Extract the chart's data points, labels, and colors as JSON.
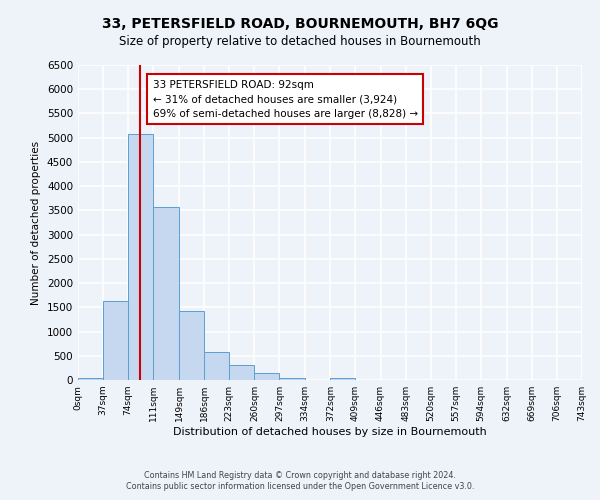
{
  "title": "33, PETERSFIELD ROAD, BOURNEMOUTH, BH7 6QG",
  "subtitle": "Size of property relative to detached houses in Bournemouth",
  "xlabel": "Distribution of detached houses by size in Bournemouth",
  "ylabel": "Number of detached properties",
  "bin_edges": [
    0,
    37,
    74,
    111,
    149,
    186,
    223,
    260,
    297,
    334,
    372,
    409,
    446,
    483,
    520,
    557,
    594,
    632,
    669,
    706,
    743
  ],
  "bar_heights": [
    50,
    1620,
    5080,
    3580,
    1420,
    580,
    300,
    140,
    50,
    0,
    50,
    0,
    0,
    0,
    0,
    0,
    0,
    0,
    0,
    0
  ],
  "bar_color": "#c5d8f0",
  "bar_edge_color": "#5a9fd4",
  "vline_x": 92,
  "vline_color": "#cc0000",
  "ylim": [
    0,
    6500
  ],
  "yticks": [
    0,
    500,
    1000,
    1500,
    2000,
    2500,
    3000,
    3500,
    4000,
    4500,
    5000,
    5500,
    6000,
    6500
  ],
  "annotation_title": "33 PETERSFIELD ROAD: 92sqm",
  "annotation_line1": "← 31% of detached houses are smaller (3,924)",
  "annotation_line2": "69% of semi-detached houses are larger (8,828) →",
  "annotation_box_color": "#ffffff",
  "annotation_box_edge": "#cc0000",
  "footer1": "Contains HM Land Registry data © Crown copyright and database right 2024.",
  "footer2": "Contains public sector information licensed under the Open Government Licence v3.0.",
  "background_color": "#eef2f9",
  "grid_color": "#ffffff",
  "tick_labels": [
    "0sqm",
    "37sqm",
    "74sqm",
    "111sqm",
    "149sqm",
    "186sqm",
    "223sqm",
    "260sqm",
    "297sqm",
    "334sqm",
    "372sqm",
    "409sqm",
    "446sqm",
    "483sqm",
    "520sqm",
    "557sqm",
    "594sqm",
    "632sqm",
    "669sqm",
    "706sqm",
    "743sqm"
  ]
}
